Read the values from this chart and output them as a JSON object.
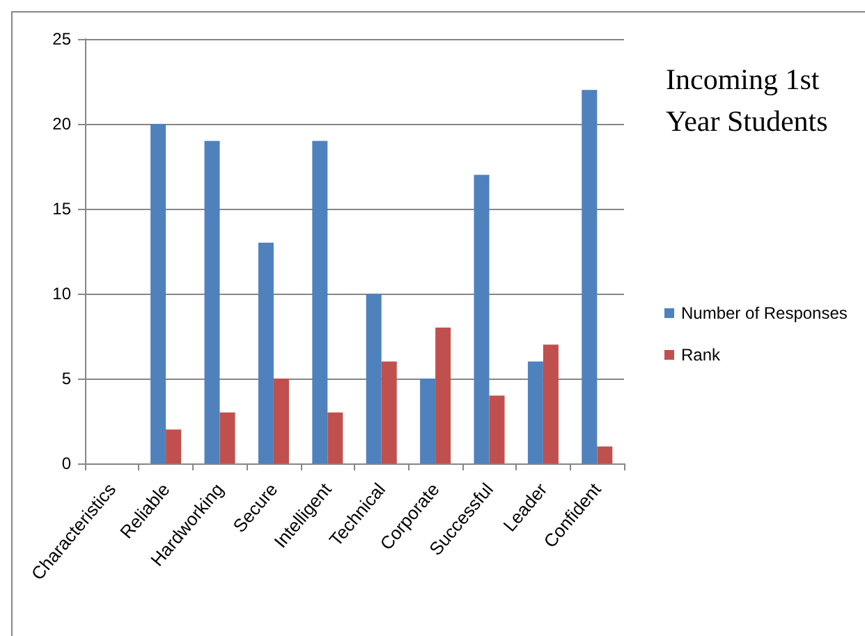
{
  "chart_data": {
    "type": "bar",
    "title": "Incoming 1st Year Students",
    "categories": [
      "Characteristics",
      "Reliable",
      "Hardworking",
      "Secure",
      "Intelligent",
      "Technical",
      "Corporate",
      "Successful",
      "Leader",
      "Confident"
    ],
    "series": [
      {
        "name": "Number of Responses",
        "color": "#4f81bd",
        "values": [
          null,
          20,
          19,
          13,
          19,
          10,
          5,
          17,
          6,
          22
        ]
      },
      {
        "name": "Rank",
        "color": "#c0504d",
        "values": [
          null,
          2,
          3,
          5,
          3,
          6,
          8,
          4,
          7,
          1
        ]
      }
    ],
    "ylim": [
      0,
      25
    ],
    "yticks": [
      0,
      5,
      10,
      15,
      20,
      25
    ],
    "grid": "y",
    "legend": "right"
  }
}
